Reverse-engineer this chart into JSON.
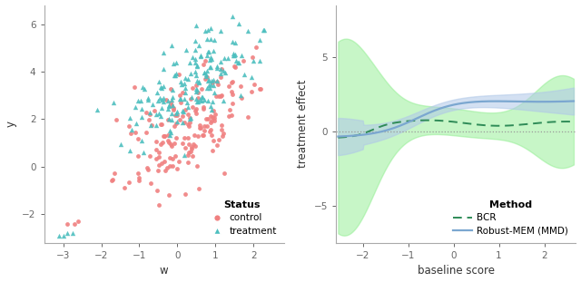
{
  "scatter": {
    "control_color": "#F08080",
    "treatment_color": "#4DBFBF",
    "xlim": [
      -3.5,
      2.8
    ],
    "ylim": [
      -3.2,
      6.8
    ],
    "xlabel": "w",
    "ylabel": "y",
    "legend_title": "Status",
    "legend_labels": [
      "control",
      "treatment"
    ]
  },
  "lines": {
    "xlim": [
      -2.6,
      2.7
    ],
    "ylim": [
      -7.5,
      8.5
    ],
    "xlabel": "baseline score",
    "ylabel": "treatment effect",
    "legend_title": "Method",
    "legend_labels": [
      "BCR",
      "Robust-MEM (MMD)"
    ],
    "zero_line_color": "#999999",
    "bcr_color": "#2E8B57",
    "mmd_color": "#7BA7D0",
    "bcr_band_color": "#90EE90",
    "mmd_band_color": "#B0C8E8",
    "bcr_band_alpha": 0.5,
    "mmd_band_alpha": 0.55,
    "yticks": [
      -5,
      0,
      5
    ],
    "xticks": [
      -2,
      -1,
      0,
      1,
      2
    ]
  },
  "bg_color": "#FFFFFF",
  "panel_bg": "#FFFFFF",
  "axis_color": "#AAAAAA",
  "tick_color": "#666666",
  "font_size": 8.5
}
